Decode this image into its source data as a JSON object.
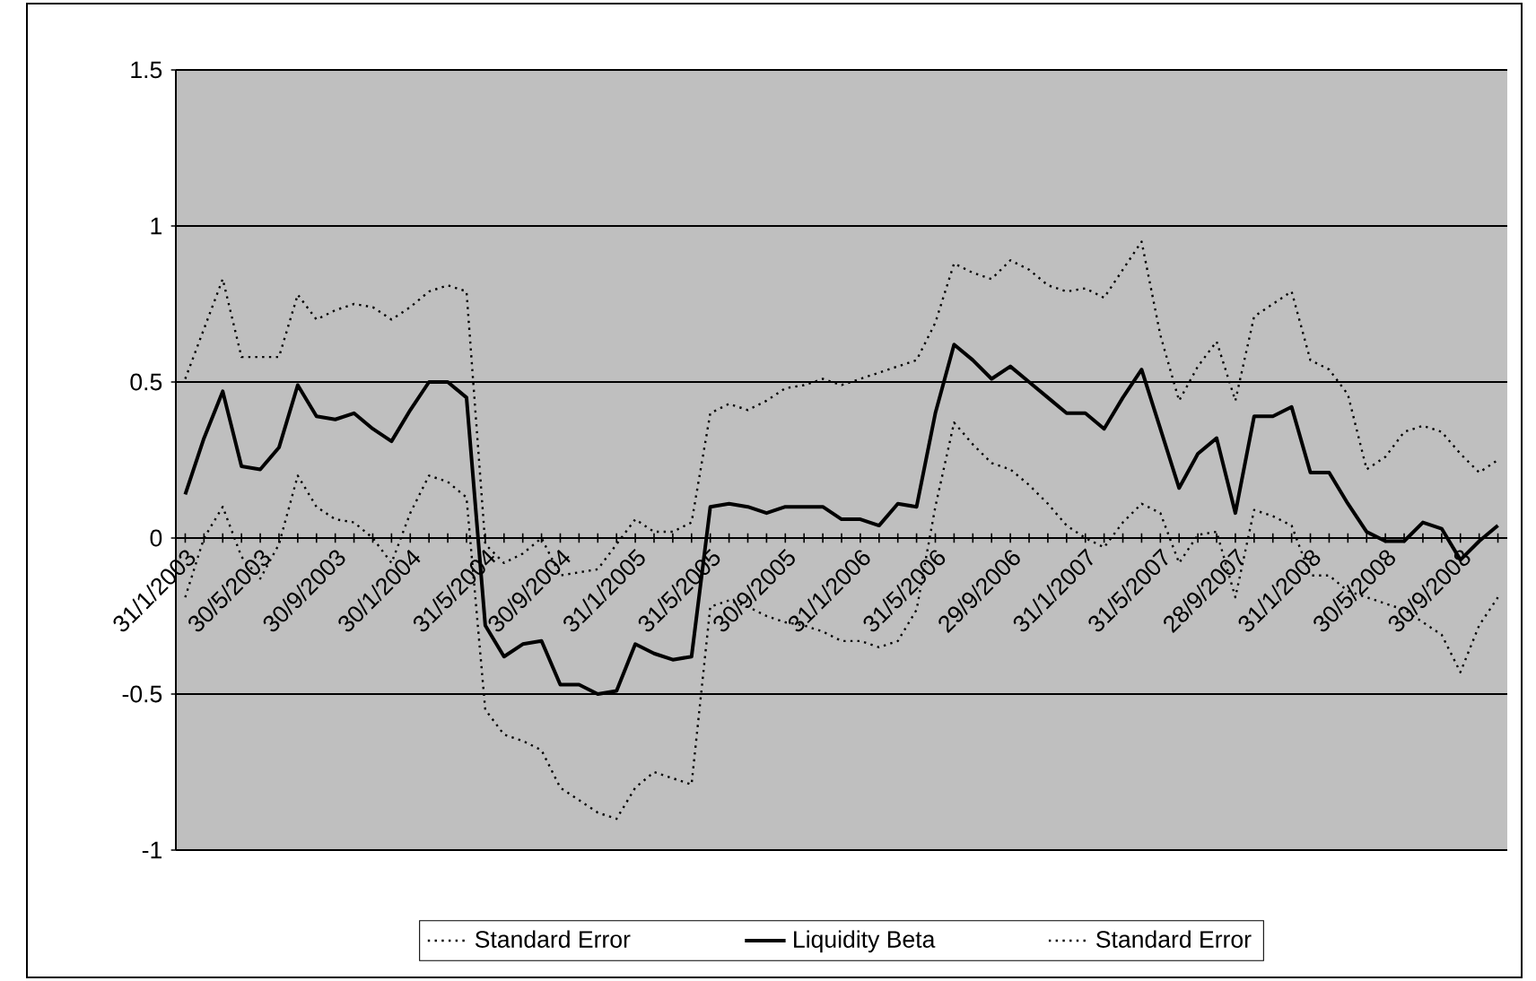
{
  "chart_data": {
    "type": "line",
    "categories": [
      "31/1/2003",
      null,
      null,
      null,
      "30/5/2003",
      null,
      null,
      null,
      "30/9/2003",
      null,
      null,
      null,
      "30/1/2004",
      null,
      null,
      null,
      "31/5/2004",
      null,
      null,
      null,
      "30/9/2004",
      null,
      null,
      null,
      "31/1/2005",
      null,
      null,
      null,
      "31/5/2005",
      null,
      null,
      null,
      "30/9/2005",
      null,
      null,
      null,
      "31/1/2006",
      null,
      null,
      null,
      "31/5/2006",
      null,
      null,
      null,
      "29/9/2006",
      null,
      null,
      null,
      "31/1/2007",
      null,
      null,
      null,
      "31/5/2007",
      null,
      null,
      null,
      "28/9/2007",
      null,
      null,
      null,
      "31/1/2008",
      null,
      null,
      null,
      "30/5/2008",
      null,
      null,
      null,
      "30/9/2008",
      null,
      null
    ],
    "series": [
      {
        "name": "Standard Error",
        "color": "#000000",
        "line_style": "dotted",
        "values": [
          0.51,
          0.67,
          0.83,
          0.58,
          0.58,
          0.58,
          0.78,
          0.7,
          0.73,
          0.75,
          0.74,
          0.7,
          0.74,
          0.79,
          0.81,
          0.79,
          -0.02,
          -0.08,
          -0.05,
          0.0,
          -0.12,
          -0.11,
          -0.1,
          -0.02,
          0.06,
          0.02,
          0.02,
          0.05,
          0.4,
          0.43,
          0.41,
          0.44,
          0.48,
          0.49,
          0.51,
          0.49,
          0.51,
          0.53,
          0.55,
          0.57,
          0.69,
          0.88,
          0.85,
          0.83,
          0.89,
          0.86,
          0.81,
          0.79,
          0.8,
          0.77,
          0.86,
          0.95,
          0.65,
          0.44,
          0.55,
          0.63,
          0.44,
          0.71,
          0.75,
          0.79,
          0.57,
          0.54,
          0.46,
          0.22,
          0.26,
          0.34,
          0.36,
          0.34,
          0.27,
          0.21,
          0.25
        ]
      },
      {
        "name": "Liquidity Beta",
        "color": "#000000",
        "line_style": "solid",
        "values": [
          0.14,
          0.32,
          0.47,
          0.23,
          0.22,
          0.29,
          0.49,
          0.39,
          0.38,
          0.4,
          0.35,
          0.31,
          0.41,
          0.5,
          0.5,
          0.45,
          -0.28,
          -0.38,
          -0.34,
          -0.33,
          -0.47,
          -0.47,
          -0.5,
          -0.49,
          -0.34,
          -0.37,
          -0.39,
          -0.38,
          0.1,
          0.11,
          0.1,
          0.08,
          0.1,
          0.1,
          0.1,
          0.06,
          0.06,
          0.04,
          0.11,
          0.1,
          0.4,
          0.62,
          0.57,
          0.51,
          0.55,
          0.5,
          0.45,
          0.4,
          0.4,
          0.35,
          0.45,
          0.54,
          0.35,
          0.16,
          0.27,
          0.32,
          0.08,
          0.39,
          0.39,
          0.42,
          0.21,
          0.21,
          0.11,
          0.02,
          -0.01,
          -0.01,
          0.05,
          0.03,
          -0.07,
          -0.01,
          0.04
        ]
      },
      {
        "name": "Standard Error",
        "color": "#000000",
        "line_style": "dotted",
        "values": [
          -0.19,
          0.0,
          0.1,
          -0.06,
          -0.13,
          -0.02,
          0.2,
          0.1,
          0.06,
          0.05,
          0.0,
          -0.08,
          0.08,
          0.2,
          0.18,
          0.13,
          -0.55,
          -0.63,
          -0.65,
          -0.68,
          -0.8,
          -0.84,
          -0.88,
          -0.9,
          -0.8,
          -0.75,
          -0.77,
          -0.79,
          -0.22,
          -0.2,
          -0.22,
          -0.25,
          -0.27,
          -0.28,
          -0.3,
          -0.33,
          -0.33,
          -0.35,
          -0.33,
          -0.23,
          0.1,
          0.37,
          0.3,
          0.24,
          0.22,
          0.17,
          0.11,
          0.04,
          0.0,
          -0.03,
          0.05,
          0.11,
          0.08,
          -0.08,
          0.01,
          0.02,
          -0.19,
          0.09,
          0.07,
          0.04,
          -0.12,
          -0.12,
          -0.17,
          -0.19,
          -0.21,
          -0.23,
          -0.27,
          -0.31,
          -0.43,
          -0.28,
          -0.19
        ]
      }
    ],
    "ylim": [
      -1,
      1.5
    ],
    "yticks": [
      -1,
      -0.5,
      0,
      0.5,
      1,
      1.5
    ],
    "grid": "y",
    "legend": "bottom",
    "marker": "none"
  }
}
